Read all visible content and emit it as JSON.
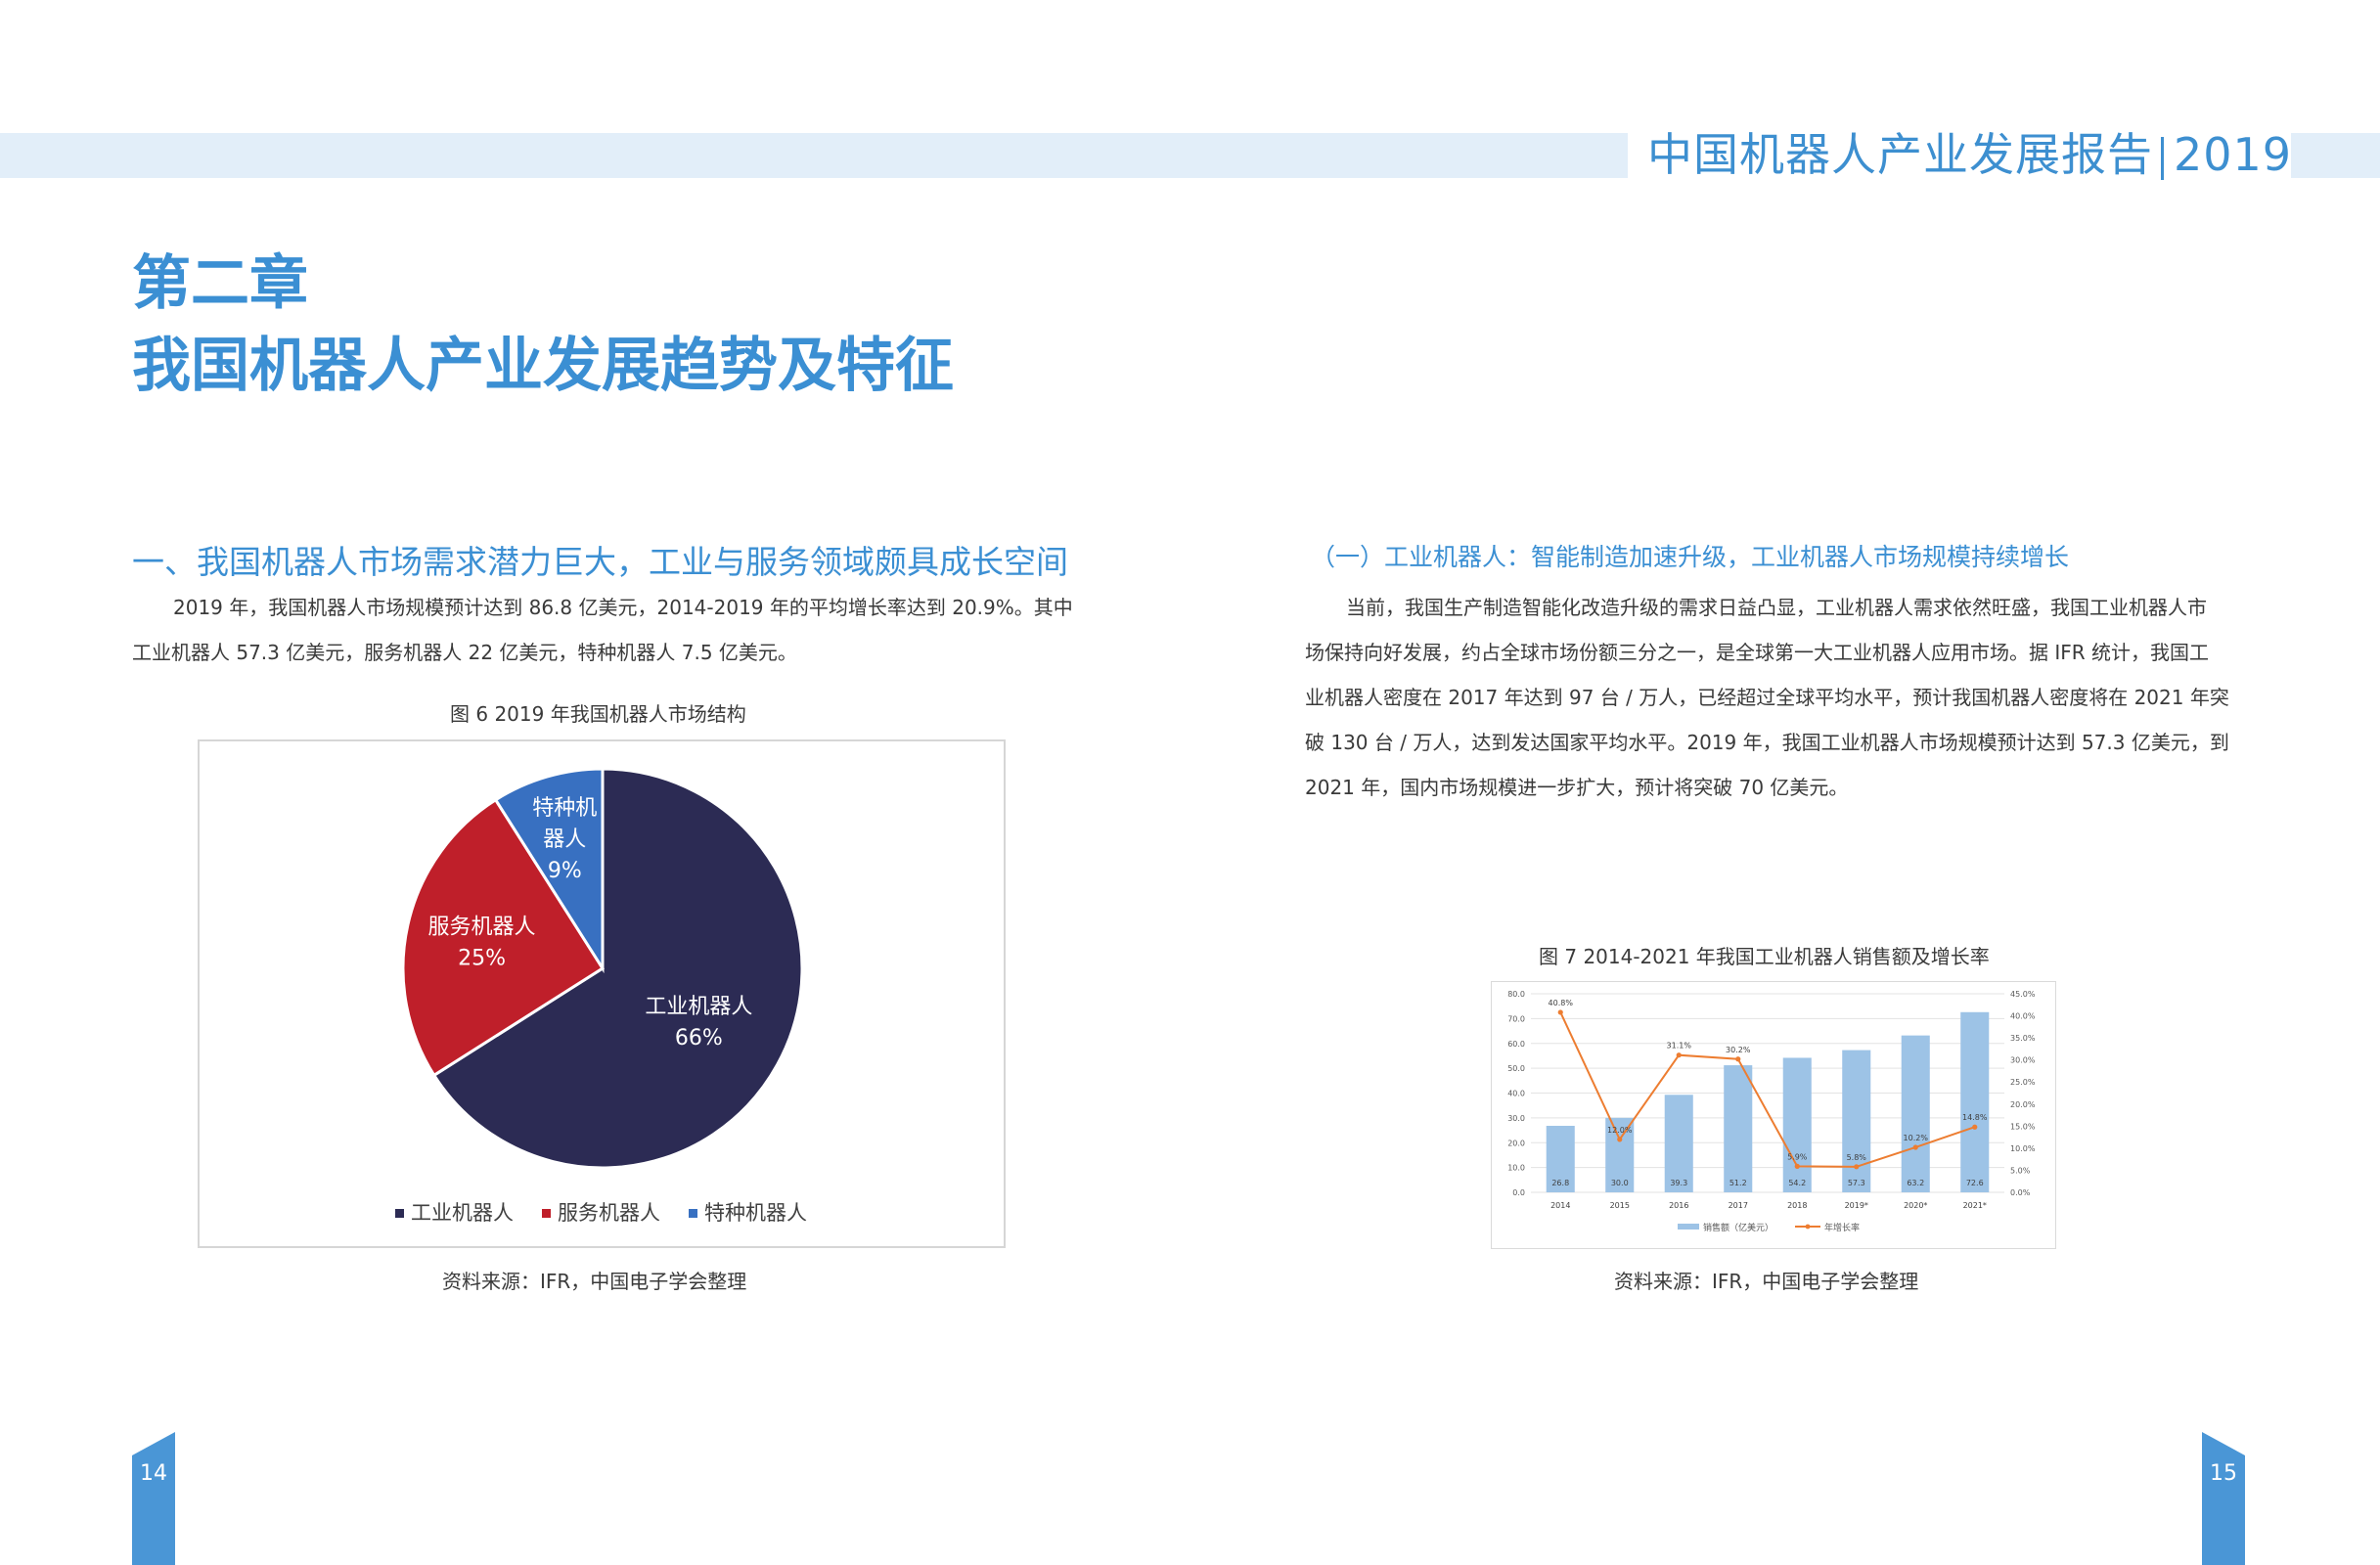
{
  "header": {
    "title": "中国机器人产业发展报告",
    "year": "2019"
  },
  "chapter": {
    "number": "第二章",
    "title": "我国机器人产业发展趋势及特征"
  },
  "left": {
    "section_title": "一、我国机器人市场需求潜力巨大，工业与服务领域颇具成长空间",
    "paragraph_lines": [
      "2019 年，我国机器人市场规模预计达到 86.8 亿美元，2014-2019 年的平均增长率达到 20.9%。其中",
      "工业机器人 57.3 亿美元，服务机器人 22 亿美元，特种机器人 7.5 亿美元。"
    ],
    "figure_caption": "图 6  2019 年我国机器人市场结构",
    "source": "资料来源：IFR，中国电子学会整理",
    "page_number": "14"
  },
  "right": {
    "sub_title": "（一）工业机器人：智能制造加速升级，工业机器人市场规模持续增长",
    "paragraph_lines": [
      "当前，我国生产制造智能化改造升级的需求日益凸显，工业机器人需求依然旺盛，我国工业机器人市",
      "场保持向好发展，约占全球市场份额三分之一，是全球第一大工业机器人应用市场。据 IFR 统计，我国工",
      "业机器人密度在 2017 年达到 97 台 / 万人，已经超过全球平均水平，预计我国机器人密度将在 2021 年突",
      "破 130 台 / 万人，达到发达国家平均水平。2019 年，我国工业机器人市场规模预计达到 57.3 亿美元，到",
      "2021 年，国内市场规模进一步扩大，预计将突破 70 亿美元。"
    ],
    "figure_caption": "图 7  2014-2021 年我国工业机器人销售额及增长率",
    "source": "资料来源：IFR，中国电子学会整理",
    "page_number": "15"
  },
  "colors": {
    "accent": "#3b8fd3",
    "header_band": "#e2eef9",
    "industrial": "#2c2b54",
    "service": "#bf1f2a",
    "special": "#3870c1",
    "bar": "#9dc3e6",
    "line": "#ed7d31"
  },
  "chart_data": [
    {
      "type": "pie",
      "slices": [
        {
          "label_lines": [
            "工业机器人"
          ],
          "value": 66,
          "pct_label": "66%",
          "color": "#2c2b54"
        },
        {
          "label_lines": [
            "服务机器人"
          ],
          "value": 25,
          "pct_label": "25%",
          "color": "#bf1f2a"
        },
        {
          "label_lines": [
            "特种机",
            "器人"
          ],
          "value": 9,
          "pct_label": "9%",
          "color": "#3870c1"
        }
      ],
      "legend": [
        "工业机器人",
        "服务机器人",
        "特种机器人"
      ],
      "legend_position": "bottom"
    },
    {
      "type": "bar",
      "categories": [
        "2014",
        "2015",
        "2016",
        "2017",
        "2018",
        "2019*",
        "2020*",
        "2021*"
      ],
      "series": [
        {
          "name": "销售额（亿美元）",
          "type": "bar",
          "values": [
            26.8,
            30.0,
            39.3,
            51.2,
            54.2,
            57.3,
            63.2,
            72.6
          ],
          "labels": [
            "26.8",
            "30.0",
            "39.3",
            "51.2",
            "54.2",
            "57.3",
            "63.2",
            "72.6"
          ],
          "axis": "left"
        },
        {
          "name": "年增长率",
          "type": "line",
          "values": [
            40.8,
            12.0,
            31.1,
            30.2,
            5.9,
            5.8,
            10.2,
            14.8
          ],
          "labels": [
            "40.8%",
            "12.0%",
            "31.1%",
            "30.2%",
            "5.9%",
            "5.8%",
            "10.2%",
            "14.8%"
          ],
          "axis": "right"
        }
      ],
      "y_left": {
        "min": 0,
        "max": 80,
        "ticks": [
          "0.0",
          "10.0",
          "20.0",
          "30.0",
          "40.0",
          "50.0",
          "60.0",
          "70.0",
          "80.0"
        ]
      },
      "y_right": {
        "min": 0,
        "max": 45,
        "ticks": [
          "0.0%",
          "5.0%",
          "10.0%",
          "15.0%",
          "20.0%",
          "25.0%",
          "30.0%",
          "35.0%",
          "40.0%",
          "45.0%"
        ]
      },
      "grid": true,
      "legend_position": "bottom"
    }
  ]
}
